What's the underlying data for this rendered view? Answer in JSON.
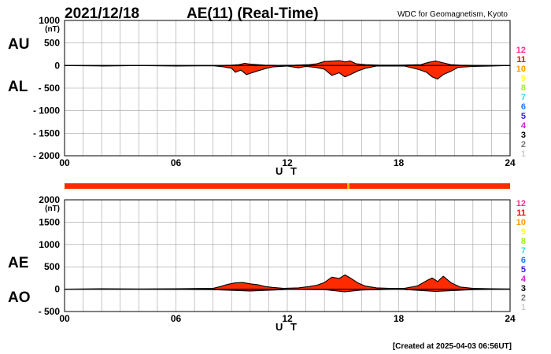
{
  "header": {
    "date": "2021/12/18",
    "title": "AE(11) (Real-Time)",
    "source": "WDC for Geomagnetism, Kyoto"
  },
  "footer": {
    "created": "[Created at 2025-04-03 06:56UT]"
  },
  "level_scale": {
    "labels": [
      "12",
      "11",
      "10",
      "9",
      "8",
      "7",
      "6",
      "5",
      "4",
      "3",
      "2",
      "1"
    ],
    "colors": [
      "#ff2f8f",
      "#ff0000",
      "#ff9900",
      "#ffff33",
      "#99ee33",
      "#33dddd",
      "#2277ff",
      "#3322cc",
      "#cc22cc",
      "#000000",
      "#777777",
      "#cccccc"
    ]
  },
  "colors": {
    "fill": "#ff2a00",
    "outline": "#000000",
    "grid": "#a0a0a0",
    "bar": "#ff2a00",
    "bar_mark": "#e6b800"
  },
  "chart_data": [
    {
      "type": "area",
      "panel": "AU/AL",
      "unit": "(nT)",
      "xlabel": "U T",
      "left_labels": [
        "AU",
        "AL"
      ],
      "xlim": [
        0,
        24
      ],
      "ylim": [
        -2000,
        1000
      ],
      "x_ticks": [
        0,
        6,
        12,
        18,
        24
      ],
      "x_tick_labels": [
        "00",
        "06",
        "12",
        "18",
        "24"
      ],
      "y_ticks": [
        1000,
        500,
        0,
        -500,
        -1000,
        -1500,
        -2000
      ],
      "y_tick_labels": [
        "1000",
        "500",
        "0",
        "- 500",
        "- 1000",
        "- 1500",
        "- 2000"
      ],
      "series": [
        {
          "name": "AU",
          "x": [
            0,
            2,
            4,
            6,
            8,
            8.6,
            9,
            9.4,
            9.7,
            10,
            10.4,
            10.8,
            11.5,
            12.4,
            13.2,
            13.6,
            14,
            14.5,
            14.8,
            15.1,
            15.4,
            15.7,
            16.2,
            17,
            18,
            19.2,
            19.6,
            20,
            20.4,
            20.8,
            21.3,
            22,
            23,
            24
          ],
          "y": [
            0,
            0,
            0,
            0,
            0,
            5,
            10,
            20,
            50,
            30,
            20,
            10,
            5,
            10,
            20,
            40,
            90,
            100,
            110,
            80,
            100,
            40,
            20,
            10,
            10,
            20,
            70,
            100,
            60,
            20,
            10,
            5,
            0,
            0
          ]
        },
        {
          "name": "AL",
          "x": [
            0,
            2,
            4,
            6,
            8,
            8.6,
            9,
            9.2,
            9.5,
            9.8,
            10.1,
            10.4,
            10.8,
            11.2,
            12,
            12.6,
            13,
            13.5,
            14,
            14.4,
            14.8,
            15.1,
            15.4,
            15.8,
            16.2,
            16.8,
            17.5,
            18.3,
            19.1,
            19.5,
            19.8,
            20.1,
            20.4,
            20.8,
            21.2,
            22,
            23,
            24
          ],
          "y": [
            0,
            -10,
            0,
            -10,
            -5,
            -30,
            -60,
            -150,
            -100,
            -200,
            -160,
            -120,
            -70,
            -30,
            -10,
            -50,
            -20,
            -40,
            -80,
            -220,
            -160,
            -250,
            -200,
            -120,
            -60,
            -10,
            -10,
            -10,
            -90,
            -150,
            -250,
            -300,
            -200,
            -130,
            -40,
            -20,
            -10,
            0
          ]
        }
      ]
    },
    {
      "type": "area",
      "panel": "AE/AO",
      "unit": "(nT)",
      "xlabel": "U T",
      "left_labels": [
        "AE",
        "AO"
      ],
      "xlim": [
        0,
        24
      ],
      "ylim": [
        -500,
        2000
      ],
      "x_ticks": [
        0,
        6,
        12,
        18,
        24
      ],
      "x_tick_labels": [
        "00",
        "06",
        "12",
        "18",
        "24"
      ],
      "y_ticks": [
        2000,
        1500,
        1000,
        500,
        0,
        -500
      ],
      "y_tick_labels": [
        "2000",
        "1500",
        "1000",
        "500",
        "0",
        "- 500"
      ],
      "series": [
        {
          "name": "AE",
          "x": [
            0,
            2,
            4,
            6,
            8,
            8.4,
            8.8,
            9.2,
            9.6,
            10,
            10.4,
            10.8,
            11.2,
            11.8,
            12.6,
            13.2,
            13.6,
            14,
            14.4,
            14.8,
            15.1,
            15.4,
            15.8,
            16.2,
            16.8,
            17.5,
            18.3,
            19,
            19.5,
            19.8,
            20.1,
            20.4,
            20.8,
            21.3,
            22,
            23,
            24
          ],
          "y": [
            0,
            10,
            5,
            10,
            20,
            60,
            110,
            140,
            150,
            120,
            100,
            60,
            40,
            20,
            30,
            60,
            90,
            150,
            270,
            240,
            320,
            250,
            140,
            70,
            30,
            20,
            20,
            70,
            190,
            250,
            170,
            290,
            150,
            50,
            20,
            10,
            5
          ]
        },
        {
          "name": "AO",
          "x": [
            0,
            4,
            8,
            10,
            12,
            14,
            15.1,
            16,
            18,
            20,
            22,
            24
          ],
          "y": [
            0,
            0,
            -10,
            -40,
            -5,
            -10,
            -60,
            -20,
            0,
            -50,
            -10,
            0
          ]
        }
      ]
    }
  ]
}
